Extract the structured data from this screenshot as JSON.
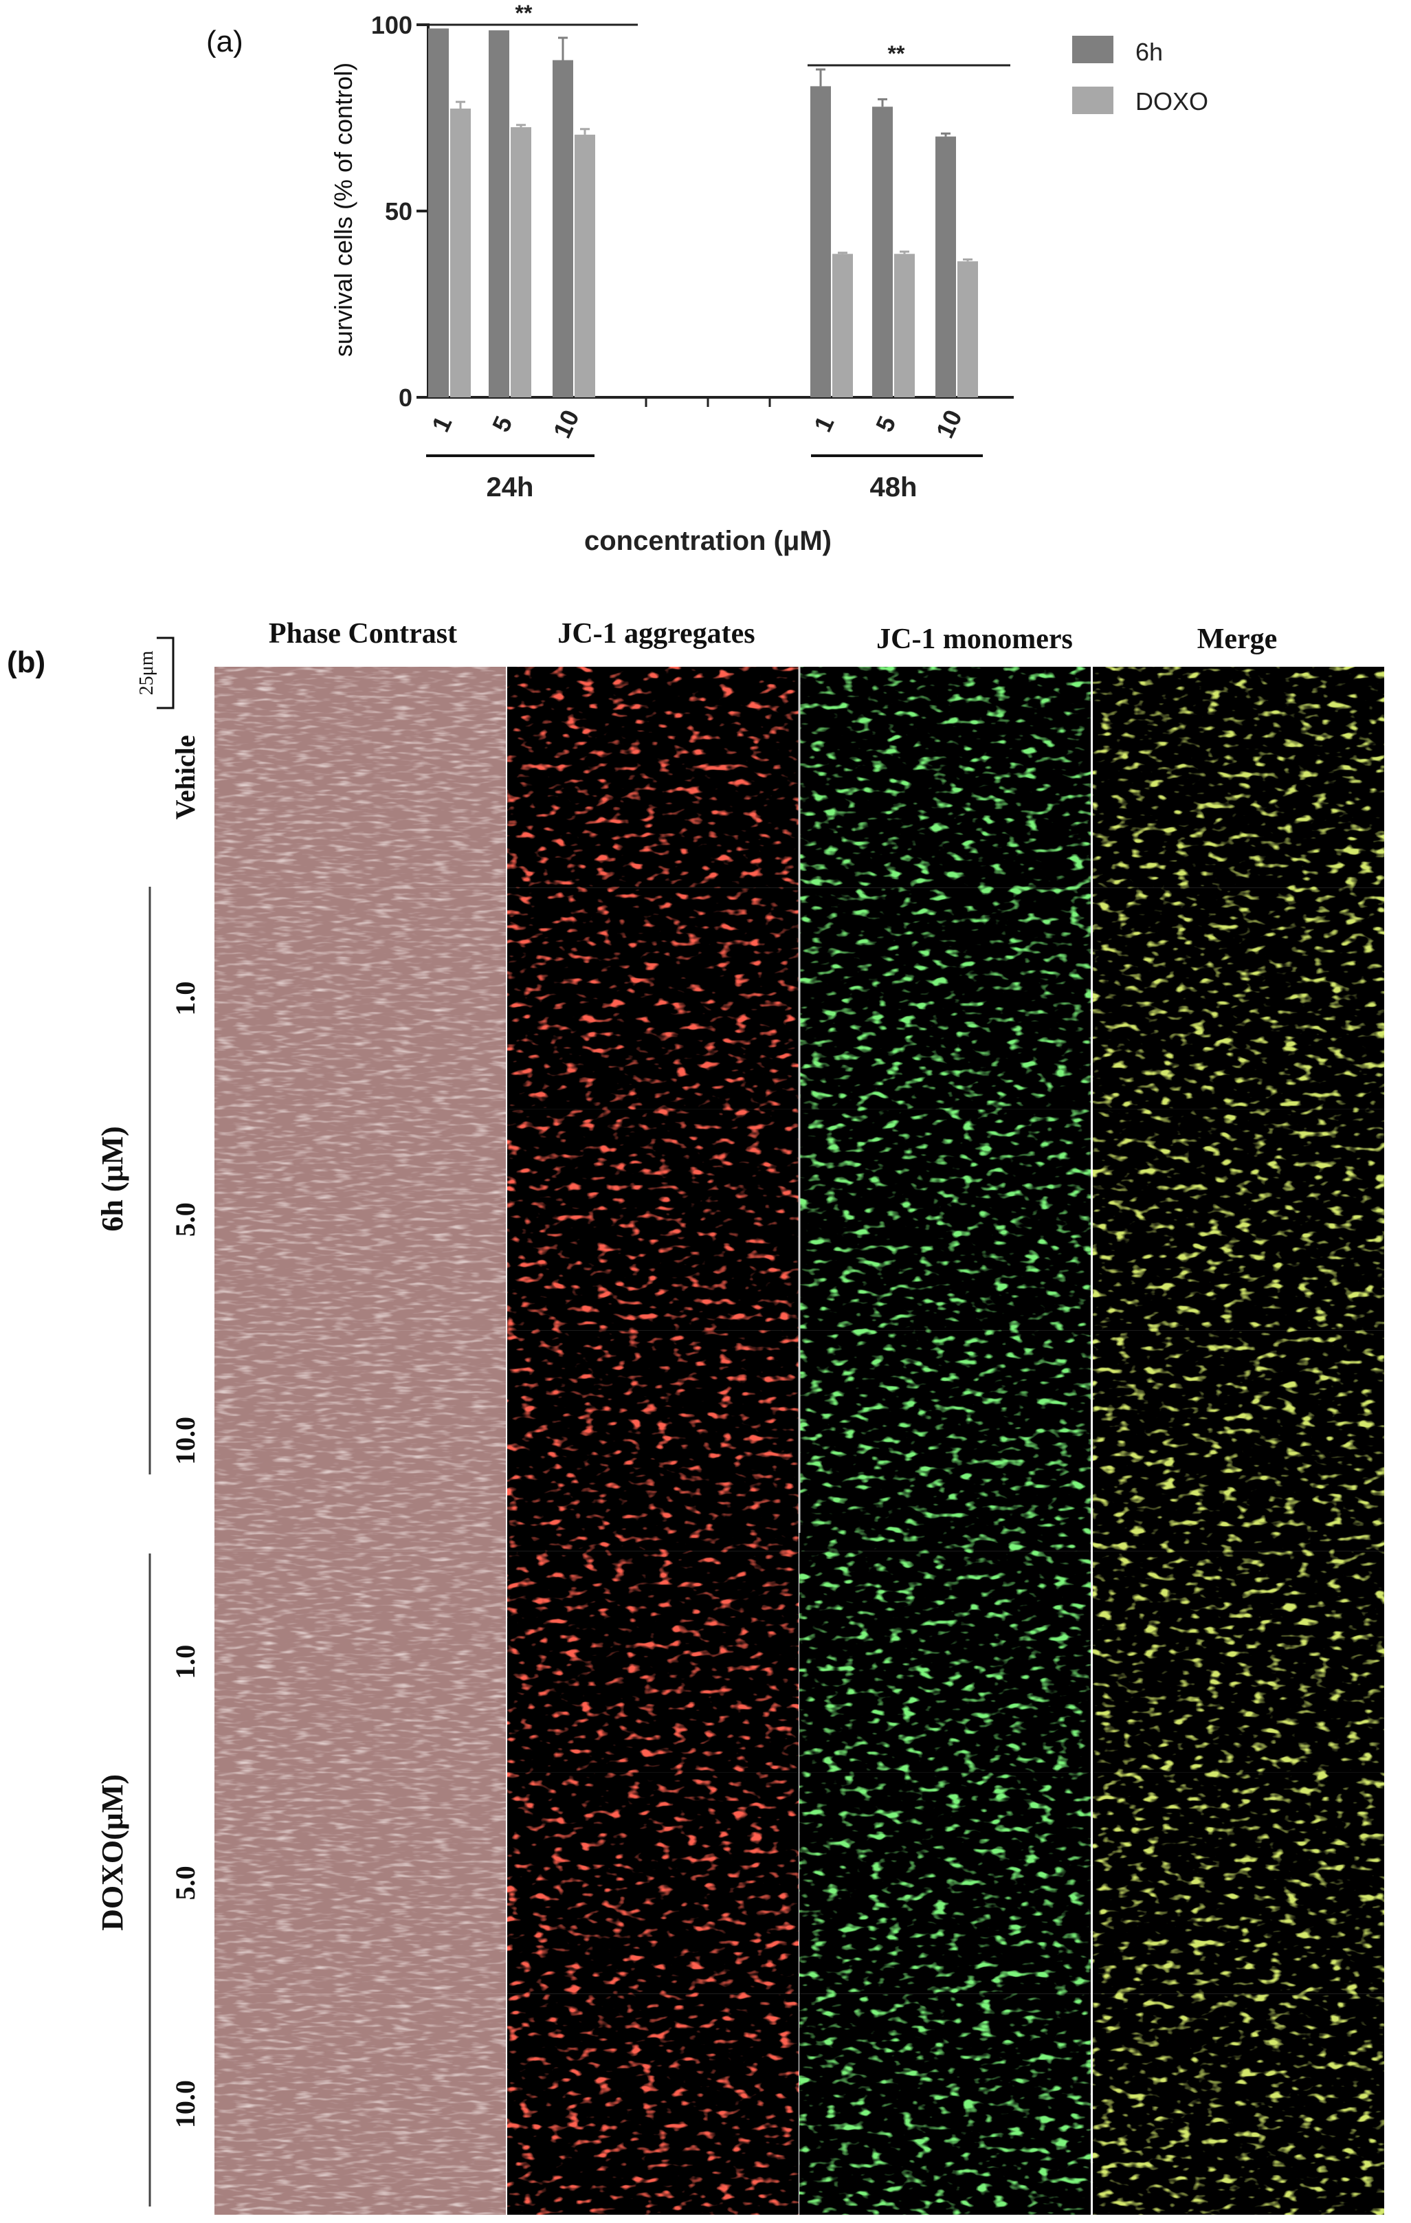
{
  "panel_a": {
    "label": "(a)"
  },
  "panel_b": {
    "label": "(b)",
    "columns": [
      "Phase Contrast",
      "JC-1 aggregates",
      "JC-1 monomers",
      "Merge"
    ],
    "scale_bar": "25μm",
    "rows": [
      "Vehicle",
      "1.0",
      "5.0",
      "10.0",
      "1.0",
      "5.0",
      "10.0"
    ],
    "groups": [
      "6h (μM)",
      "DOXO(μM)"
    ]
  },
  "colors": {
    "series_6h": "#7f7f7f",
    "series_doxo": "#a8a8a8",
    "phase": "#a7817f",
    "red": "#ff3322",
    "green": "#33dd33"
  },
  "chart_data": {
    "type": "bar",
    "title": "",
    "ylabel": "survival cells (% of control)",
    "xlabel": "concentration (μM)",
    "ylim": [
      0,
      100
    ],
    "yticks": [
      0,
      50,
      100
    ],
    "groups": [
      {
        "label": "24h",
        "categories": [
          "1",
          "5",
          "10"
        ],
        "significance": "**"
      },
      {
        "label": "48h",
        "categories": [
          "1",
          "5",
          "10"
        ],
        "significance": "**"
      }
    ],
    "series": [
      {
        "name": "6h",
        "values": [
          99,
          98.5,
          90.5,
          83.5,
          78,
          70
        ],
        "errors": [
          0,
          0,
          6,
          4.5,
          2,
          0.8
        ]
      },
      {
        "name": "DOXO",
        "values": [
          77.5,
          72.5,
          70.5,
          38.5,
          38.5,
          36.5
        ],
        "errors": [
          1.8,
          0.6,
          1.5,
          0.3,
          0.6,
          0.5
        ]
      }
    ],
    "legend": "top-right",
    "grid": false
  }
}
